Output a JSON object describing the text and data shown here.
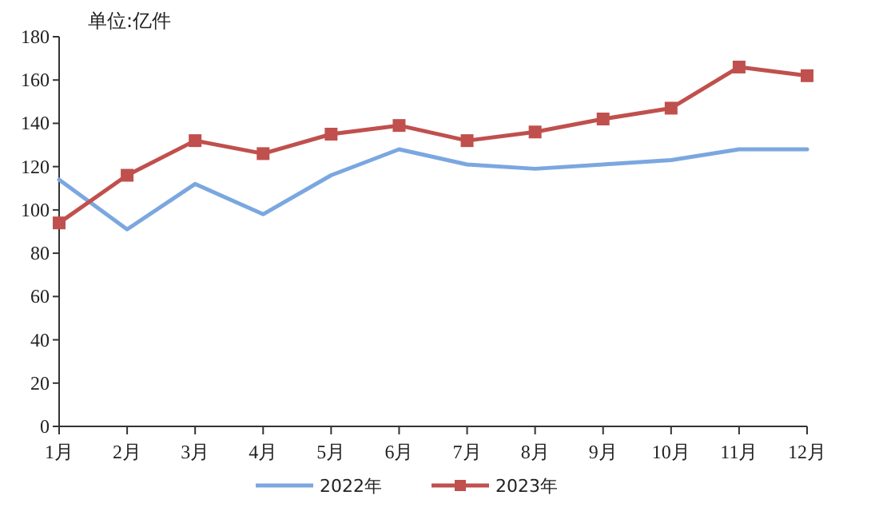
{
  "chart_data": {
    "type": "line",
    "ylabel": "单位:亿件",
    "categories": [
      "1月",
      "2月",
      "3月",
      "4月",
      "5月",
      "6月",
      "7月",
      "8月",
      "9月",
      "10月",
      "11月",
      "12月"
    ],
    "series": [
      {
        "name": "2022年",
        "color": "#7ba7e0",
        "marker": "none",
        "values": [
          114,
          91,
          112,
          98,
          116,
          128,
          121,
          119,
          121,
          123,
          128,
          128
        ]
      },
      {
        "name": "2023年",
        "color": "#c0504d",
        "marker": "square",
        "values": [
          94,
          116,
          132,
          126,
          135,
          139,
          132,
          136,
          142,
          147,
          166,
          162
        ]
      }
    ],
    "ylim": [
      0,
      180
    ],
    "yticks": [
      0,
      20,
      40,
      60,
      80,
      100,
      120,
      140,
      160,
      180
    ],
    "grid": false,
    "legend": "bottom",
    "line_style": "solid"
  }
}
